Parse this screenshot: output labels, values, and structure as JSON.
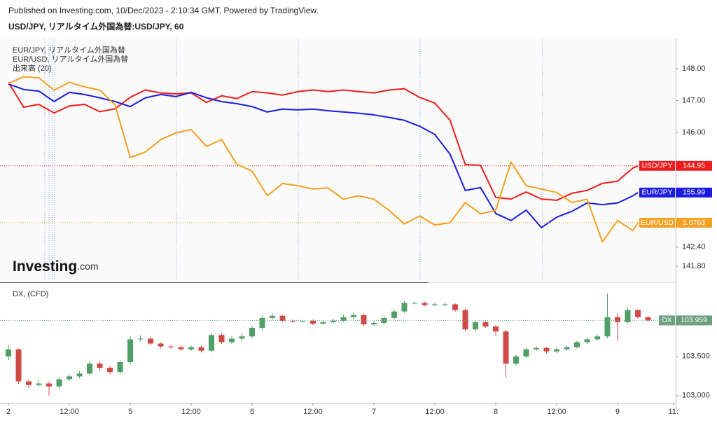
{
  "header": {
    "published": "Published on Investing.com, 10/Dec/2023 - 2:10:34 GMT, Powered by TradingView.",
    "symbol": "USD/JPY, リアルタイム外国為替:USD/JPY, 60"
  },
  "chart_data": [
    {
      "type": "line",
      "legend_labels": [
        "EUR/JPY, リアルタイム外国為替",
        "EUR/USD, リアルタイム外国為替",
        "出来高 (20)"
      ],
      "logo": "Investing",
      "logo_suffix": ".com",
      "x": [
        0,
        3,
        6,
        9,
        12,
        15,
        18,
        21,
        24,
        27,
        30,
        33,
        36,
        39,
        42,
        45,
        48,
        51,
        54,
        57,
        60,
        63,
        66,
        69,
        72,
        75,
        78,
        81,
        84,
        87,
        90,
        93,
        96,
        99,
        102,
        105,
        108,
        111,
        114,
        117,
        120,
        123,
        124
      ],
      "xlim": [
        -1.66,
        131.45
      ],
      "ylim": [
        141.297,
        148.945
      ],
      "yticks": [
        {
          "value": 148,
          "label": "148.00"
        },
        {
          "value": 147,
          "label": "147.00"
        },
        {
          "value": 146,
          "label": "146.00"
        },
        {
          "value": 142.4,
          "label": "142.40"
        },
        {
          "value": 141.8,
          "label": "141.80"
        }
      ],
      "series": [
        {
          "name": "USD/JPY",
          "color": "#ee1c1c",
          "price_line": true,
          "values": [
            147.57,
            146.79,
            146.88,
            146.61,
            146.83,
            146.88,
            146.65,
            146.74,
            147.1,
            147.33,
            147.24,
            147.21,
            147.24,
            146.94,
            147.15,
            147.06,
            147.28,
            147.24,
            147.17,
            147.28,
            147.33,
            147.28,
            147.33,
            147.28,
            147.24,
            147.33,
            147.37,
            147.1,
            146.92,
            146.38,
            144.99,
            144.97,
            143.96,
            143.91,
            144.13,
            143.91,
            143.87,
            144.09,
            144.18,
            144.4,
            144.47,
            144.88,
            144.95
          ]
        },
        {
          "name": "EUR/JPY",
          "color": "#1c1ce0",
          "price_line": false,
          "ylim": [
            153.84,
            159.68
          ],
          "values": [
            158.59,
            158.46,
            158.42,
            158.17,
            158.39,
            158.34,
            158.26,
            158.17,
            158.05,
            158.26,
            158.34,
            158.29,
            158.39,
            158.26,
            158.17,
            158.12,
            158.05,
            157.92,
            157.99,
            157.97,
            157.99,
            157.95,
            157.92,
            157.89,
            157.85,
            157.79,
            157.72,
            157.58,
            157.38,
            156.91,
            156.04,
            156.11,
            155.49,
            155.32,
            155.57,
            155.15,
            155.4,
            155.54,
            155.74,
            155.7,
            155.74,
            155.91,
            155.99
          ]
        },
        {
          "name": "EUR/USD",
          "color": "#f5a020",
          "price_line": true,
          "ylim": [
            1.071,
            1.0927
          ],
          "values": [
            1.0887,
            1.0893,
            1.0892,
            1.0881,
            1.0888,
            1.0884,
            1.0881,
            1.0868,
            1.0821,
            1.0826,
            1.0837,
            1.0843,
            1.0846,
            1.0831,
            1.0837,
            1.0815,
            1.0809,
            1.0787,
            1.0798,
            1.0796,
            1.0793,
            1.0794,
            1.0784,
            1.0787,
            1.0784,
            1.0774,
            1.0762,
            1.0769,
            1.0761,
            1.0763,
            1.0781,
            1.0771,
            1.0774,
            1.0817,
            1.0796,
            1.0793,
            1.079,
            1.0781,
            1.0784,
            1.0746,
            1.0765,
            1.0756,
            1.0763
          ]
        }
      ]
    },
    {
      "type": "candlestick",
      "title": "DX, (CFD)",
      "name": "DX",
      "up_color": "#4f9f66",
      "down_color": "#d04a45",
      "tag_color": "#6b9e7c",
      "x": [
        0,
        2,
        4,
        6,
        8,
        10,
        12,
        14,
        16,
        18,
        20,
        22,
        24,
        26,
        28,
        30,
        32,
        34,
        36,
        38,
        40,
        42,
        44,
        46,
        48,
        50,
        52,
        54,
        56,
        58,
        60,
        62,
        64,
        66,
        68,
        70,
        72,
        74,
        76,
        78,
        80,
        82,
        84,
        86,
        88,
        90,
        92,
        94,
        96,
        98,
        100,
        102,
        104,
        106,
        108,
        110,
        112,
        114,
        116,
        118,
        120,
        122,
        124,
        126
      ],
      "open": [
        103.5,
        103.591,
        103.182,
        103.136,
        103.155,
        103.118,
        103.209,
        103.245,
        103.282,
        103.409,
        103.355,
        103.3,
        103.427,
        103.718,
        103.727,
        103.664,
        103.627,
        103.618,
        103.591,
        103.618,
        103.573,
        103.773,
        103.682,
        103.727,
        103.755,
        103.864,
        103.991,
        104.018,
        103.955,
        103.945,
        103.955,
        103.918,
        103.936,
        103.955,
        104.0,
        104.027,
        103.909,
        103.927,
        103.991,
        104.073,
        104.182,
        104.182,
        104.155,
        104.164,
        104.164,
        104.091,
        103.845,
        103.936,
        103.882,
        103.818,
        103.409,
        103.5,
        103.591,
        103.609,
        103.564,
        103.591,
        103.618,
        103.682,
        103.718,
        103.755,
        104.0,
        103.936,
        104.091,
        104.0
      ],
      "high": [
        103.65,
        103.6,
        103.21,
        103.19,
        103.18,
        103.24,
        103.27,
        103.31,
        103.44,
        103.43,
        103.38,
        103.45,
        103.76,
        103.77,
        103.75,
        103.68,
        103.65,
        103.64,
        103.64,
        103.64,
        103.8,
        103.8,
        103.76,
        103.79,
        103.89,
        104.02,
        104.05,
        104.03,
        103.97,
        103.97,
        103.97,
        103.96,
        103.98,
        104.03,
        104.06,
        104.04,
        103.95,
        104.02,
        104.1,
        104.21,
        104.2,
        104.2,
        104.19,
        104.18,
        104.18,
        104.11,
        103.96,
        103.95,
        103.9,
        103.84,
        103.52,
        103.61,
        103.63,
        103.62,
        103.61,
        103.64,
        103.7,
        103.74,
        103.78,
        104.3,
        104.05,
        104.12,
        104.1,
        104.01
      ],
      "low": [
        103.45,
        103.15,
        103.1,
        103.11,
        103.0,
        103.09,
        103.18,
        103.22,
        103.26,
        103.32,
        103.27,
        103.28,
        103.4,
        103.69,
        103.64,
        103.6,
        103.6,
        103.57,
        103.57,
        103.55,
        103.55,
        103.66,
        103.66,
        103.7,
        103.73,
        103.84,
        103.97,
        103.94,
        103.93,
        103.93,
        103.9,
        103.9,
        103.92,
        103.94,
        103.98,
        103.89,
        103.89,
        103.91,
        103.97,
        104.05,
        104.16,
        104.14,
        104.14,
        104.14,
        104.07,
        103.82,
        103.82,
        103.86,
        103.76,
        103.23,
        103.38,
        103.48,
        103.57,
        103.54,
        103.54,
        103.57,
        103.6,
        103.66,
        103.7,
        103.73,
        103.7,
        103.92,
        103.98,
        103.94
      ],
      "close": [
        103.591,
        103.182,
        103.136,
        103.155,
        103.118,
        103.209,
        103.245,
        103.282,
        103.409,
        103.355,
        103.3,
        103.427,
        103.718,
        103.727,
        103.664,
        103.627,
        103.618,
        103.591,
        103.618,
        103.573,
        103.773,
        103.682,
        103.727,
        103.755,
        103.864,
        103.991,
        104.018,
        103.955,
        103.945,
        103.955,
        103.918,
        103.936,
        103.955,
        104.0,
        104.027,
        103.909,
        103.927,
        103.991,
        104.073,
        104.182,
        104.182,
        104.155,
        104.164,
        104.164,
        104.091,
        103.845,
        103.936,
        103.882,
        103.818,
        103.409,
        103.5,
        103.591,
        103.609,
        103.564,
        103.591,
        103.618,
        103.682,
        103.718,
        103.755,
        104.0,
        103.936,
        104.091,
        104.0,
        103.959
      ],
      "xlim": [
        -1.66,
        131.45
      ],
      "ylim": [
        102.927,
        104.427
      ],
      "yticks": [
        {
          "value": 103.5,
          "label": "103.500"
        },
        {
          "value": 103,
          "label": "103.000"
        }
      ],
      "xticks": [
        {
          "value": 0,
          "label": "2"
        },
        {
          "value": 12,
          "label": "12:00"
        },
        {
          "value": 24,
          "label": "5"
        },
        {
          "value": 36,
          "label": "12:00"
        },
        {
          "value": 48,
          "label": "6"
        },
        {
          "value": 60,
          "label": "12:00"
        },
        {
          "value": 72,
          "label": "7"
        },
        {
          "value": 84,
          "label": "12:00"
        },
        {
          "value": 96,
          "label": "8"
        },
        {
          "value": 108,
          "label": "12:00"
        },
        {
          "value": 120,
          "label": "9"
        },
        {
          "value": 131,
          "label": "11:"
        }
      ]
    }
  ]
}
